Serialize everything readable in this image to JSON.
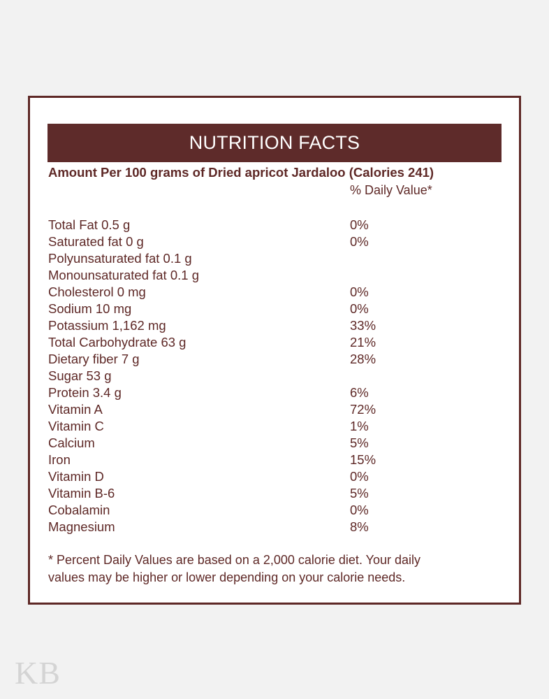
{
  "panel": {
    "title": "NUTRITION FACTS",
    "amount_line": "Amount Per 100 grams of Dried apricot Jardaloo (Calories 241)",
    "daily_value_header": "% Daily Value*",
    "rows": [
      {
        "name": "Total Fat 0.5 g",
        "dv": "0%"
      },
      {
        "name": "Saturated fat 0 g",
        "dv": "0%"
      },
      {
        "name": "Polyunsaturated fat 0.1 g",
        "dv": ""
      },
      {
        "name": "Monounsaturated fat 0.1 g",
        "dv": ""
      },
      {
        "name": "Cholesterol 0 mg",
        "dv": "0%"
      },
      {
        "name": "Sodium 10 mg",
        "dv": "0%"
      },
      {
        "name": "Potassium 1,162 mg",
        "dv": "33%"
      },
      {
        "name": "Total Carbohydrate 63 g",
        "dv": "21%"
      },
      {
        "name": "Dietary fiber 7 g",
        "dv": "28%"
      },
      {
        "name": "Sugar 53 g",
        "dv": ""
      },
      {
        "name": "Protein 3.4 g",
        "dv": "6%"
      },
      {
        "name": "Vitamin A",
        "dv": "72%"
      },
      {
        "name": "Vitamin C",
        "dv": "1%"
      },
      {
        "name": "Calcium",
        "dv": "5%"
      },
      {
        "name": "Iron",
        "dv": "15%"
      },
      {
        "name": "Vitamin D",
        "dv": "0%"
      },
      {
        "name": "Vitamin B-6",
        "dv": "5%"
      },
      {
        "name": "Cobalamin",
        "dv": "0%"
      },
      {
        "name": "Magnesium",
        "dv": "8%"
      }
    ],
    "footnote_line1": "* Percent Daily Values are based on a 2,000 calorie diet. Your daily",
    "footnote_line2": "values may be higher or lower depending on your calorie needs."
  },
  "watermark": "KB",
  "colors": {
    "brand": "#5e2b2a",
    "text": "#5e2826",
    "background": "#f2f2f2",
    "watermark": "#d4d4d4"
  }
}
